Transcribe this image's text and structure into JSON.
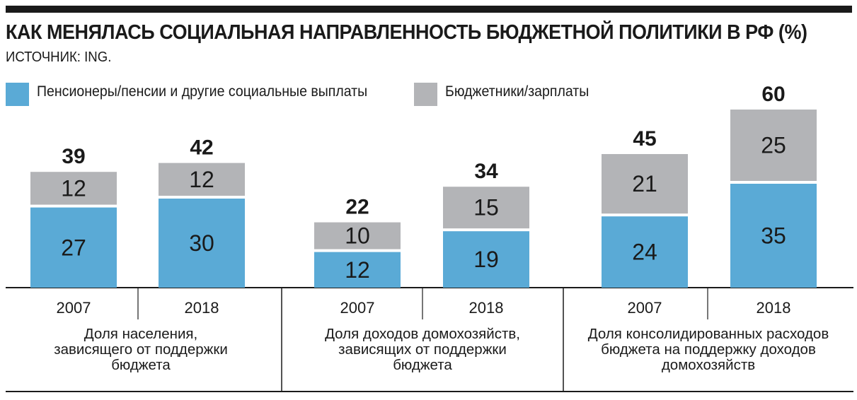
{
  "header": {
    "title": "КАК МЕНЯЛАСЬ СОЦИАЛЬНАЯ НАПРАВЛЕННОСТЬ БЮДЖЕТНОЙ ПОЛИТИКИ В РФ (%)",
    "source": "ИСТОЧНИК: ING."
  },
  "colors": {
    "pensions": "#5aaad6",
    "salaries": "#b3b4b7",
    "ink": "#1a1a1a"
  },
  "chart_data": {
    "type": "bar",
    "stacked": true,
    "title": "КАК МЕНЯЛАСЬ СОЦИАЛЬНАЯ НАПРАВЛЕННОСТЬ БЮДЖЕТНОЙ ПОЛИТИКИ В РФ (%)",
    "legend_position": "top-left",
    "grid": false,
    "ylim": [
      0,
      60
    ],
    "groups": [
      {
        "label": "Доля населения,\nзависящего от поддержки\nбюджета",
        "categories": [
          "2007",
          "2018"
        ],
        "totals": [
          39,
          42
        ]
      },
      {
        "label": "Доля доходов домохозяйств,\nзависящих от поддержки\nбюджета",
        "categories": [
          "2007",
          "2018"
        ],
        "totals": [
          22,
          34
        ]
      },
      {
        "label": "Доля консолидированных расходов\nбюджета на поддержку доходов\nдомохозяйств",
        "categories": [
          "2007",
          "2018"
        ],
        "totals": [
          45,
          60
        ]
      }
    ],
    "series": [
      {
        "name": "Пенсионеры/пенсии и другие социальные выплаты",
        "color": "#5aaad6",
        "values": [
          [
            27,
            30
          ],
          [
            12,
            19
          ],
          [
            24,
            35
          ]
        ]
      },
      {
        "name": "Бюджетники/зарплаты",
        "color": "#b3b4b7",
        "values": [
          [
            12,
            12
          ],
          [
            10,
            15
          ],
          [
            21,
            25
          ]
        ]
      }
    ]
  }
}
